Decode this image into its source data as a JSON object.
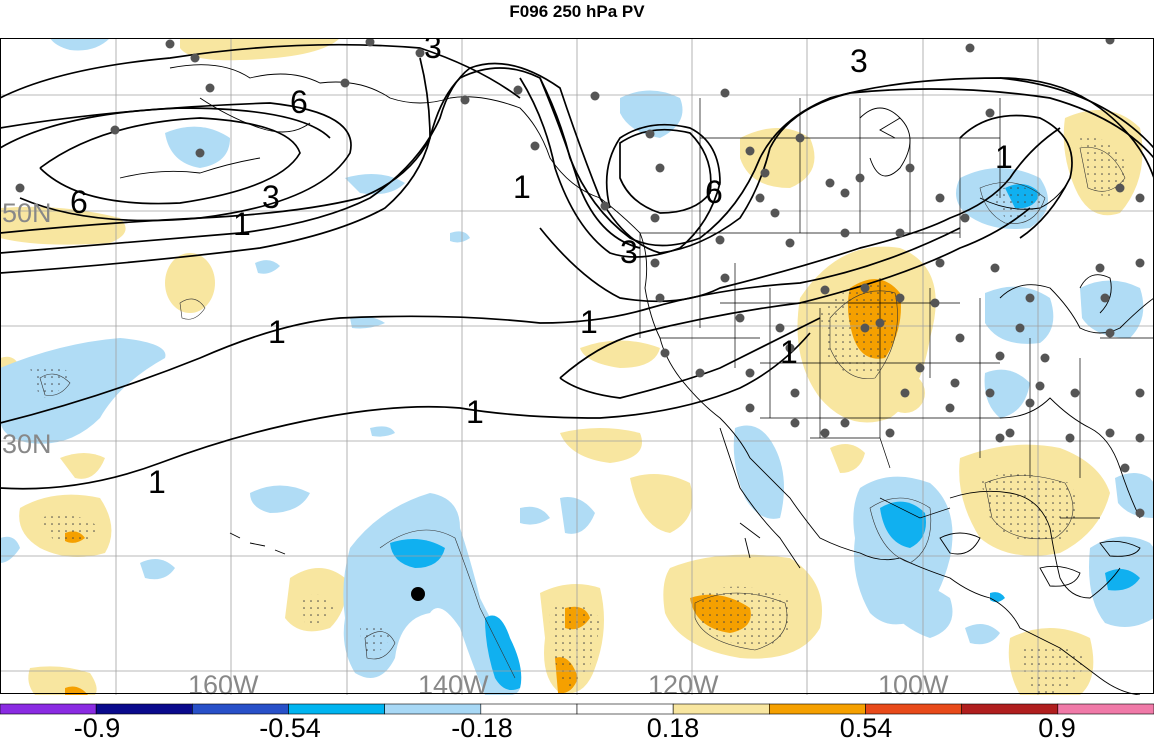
{
  "title": "F096 250 hPa PV",
  "latitude_labels": [
    "50N",
    "30N"
  ],
  "longitude_labels": [
    "160W",
    "140W",
    "120W",
    "100W"
  ],
  "contour_labels": [
    "3",
    "6",
    "6",
    "3",
    "1",
    "1",
    "3",
    "6",
    "3",
    "1",
    "1",
    "1",
    "1",
    "1",
    "1"
  ],
  "colorbar": {
    "tick_labels": [
      "-0.9",
      "-0.54",
      "-0.18",
      "0.18",
      "0.54",
      "0.9"
    ],
    "colors": [
      "#8a2be2",
      "#0a0a8c",
      "#2850c8",
      "#00b4f0",
      "#a8d8f5",
      "#ffffff",
      "#ffffff",
      "#f8e6a0",
      "#f5a000",
      "#e84a1a",
      "#b01e1e",
      "#f07aa8"
    ]
  },
  "shading_colors": {
    "light_yellow": "#f8e6a0",
    "orange": "#f5a000",
    "light_blue": "#b0dcf5",
    "blue": "#10b0f0"
  }
}
